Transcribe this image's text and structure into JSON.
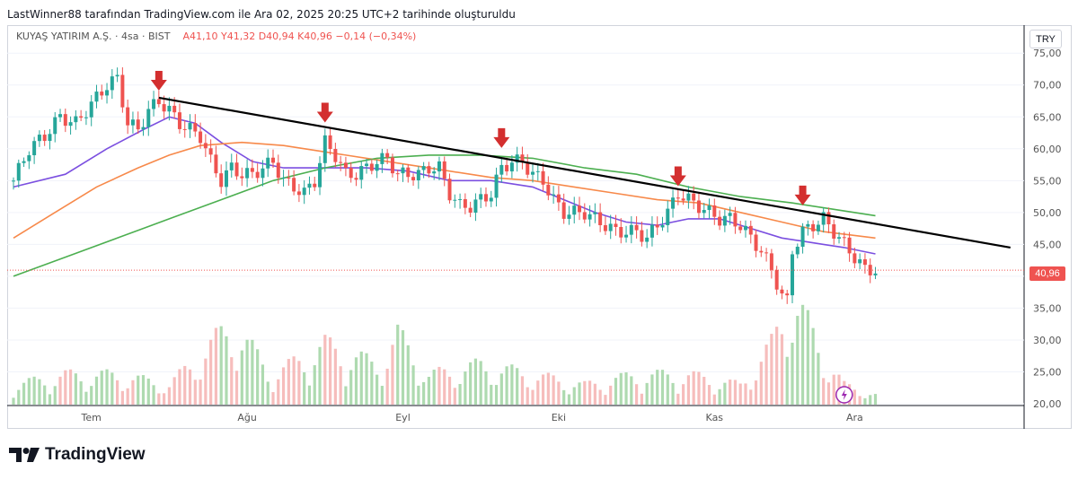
{
  "header": {
    "text": "LastWinner88 tarafından TradingView.com ile Ara 02, 2025 20:25 UTC+2 tarihinde oluşturuldu"
  },
  "legend": {
    "symbol": "KUYAŞ YATIRIM A.Ş. · 4sa · BIST",
    "a": "A41,10",
    "y": "Y41,32",
    "d": "D40,94",
    "k": "K40,96",
    "change": "−0,14 (−0,34%)"
  },
  "currency": "TRY",
  "last_price": "40,96",
  "brand": {
    "name": "TradingView"
  },
  "colors": {
    "up": "#26a69a",
    "down": "#ef5350",
    "ma_short": "#7b4fe0",
    "ma_mid": "#f7894a",
    "ma_long": "#4caf50",
    "trend": "#000000",
    "arrow": "#d32f2f"
  },
  "chart_data": {
    "type": "candlestick",
    "title": "KUYAŞ YATIRIM A.Ş. · 4sa · BIST",
    "ylim": [
      20,
      77
    ],
    "y_ticks": [
      "75,00",
      "70,00",
      "65,00",
      "60,00",
      "55,00",
      "50,00",
      "45,00",
      "40,00",
      "35,00",
      "30,00",
      "25,00",
      "20,00"
    ],
    "y_tick_values": [
      75,
      70,
      65,
      60,
      55,
      50,
      45,
      40,
      35,
      30,
      25,
      20
    ],
    "x_labels": [
      "Tem",
      "Ağu",
      "Eyl",
      "Eki",
      "Kas",
      "Ara"
    ],
    "x_label_index": [
      15,
      45,
      75,
      105,
      135,
      162
    ],
    "n_bars": 167,
    "close_path": [
      [
        0,
        55
      ],
      [
        3,
        60
      ],
      [
        6,
        62
      ],
      [
        9,
        65
      ],
      [
        12,
        64
      ],
      [
        15,
        67
      ],
      [
        18,
        70
      ],
      [
        20,
        71
      ],
      [
        22,
        64
      ],
      [
        24,
        63
      ],
      [
        26,
        66
      ],
      [
        28,
        67.5
      ],
      [
        30,
        66
      ],
      [
        32,
        64
      ],
      [
        34,
        63
      ],
      [
        36,
        62
      ],
      [
        38,
        58
      ],
      [
        40,
        55
      ],
      [
        42,
        57
      ],
      [
        44,
        56
      ],
      [
        46,
        56
      ],
      [
        48,
        57
      ],
      [
        50,
        58
      ],
      [
        52,
        55
      ],
      [
        54,
        54
      ],
      [
        56,
        53
      ],
      [
        58,
        55
      ],
      [
        60,
        61
      ],
      [
        62,
        59
      ],
      [
        64,
        56
      ],
      [
        66,
        56
      ],
      [
        68,
        57
      ],
      [
        70,
        58
      ],
      [
        72,
        58.5
      ],
      [
        74,
        56
      ],
      [
        76,
        56
      ],
      [
        78,
        56
      ],
      [
        80,
        57
      ],
      [
        82,
        57
      ],
      [
        84,
        53
      ],
      [
        86,
        51
      ],
      [
        88,
        51
      ],
      [
        90,
        52
      ],
      [
        92,
        53
      ],
      [
        94,
        57
      ],
      [
        96,
        58
      ],
      [
        98,
        58
      ],
      [
        100,
        56
      ],
      [
        102,
        55
      ],
      [
        104,
        52
      ],
      [
        106,
        50
      ],
      [
        108,
        50
      ],
      [
        110,
        50
      ],
      [
        112,
        49
      ],
      [
        114,
        48
      ],
      [
        116,
        47
      ],
      [
        118,
        47
      ],
      [
        120,
        47
      ],
      [
        122,
        46
      ],
      [
        124,
        48
      ],
      [
        126,
        50
      ],
      [
        128,
        53
      ],
      [
        130,
        52
      ],
      [
        132,
        51
      ],
      [
        134,
        50
      ],
      [
        136,
        49
      ],
      [
        138,
        49
      ],
      [
        140,
        48
      ],
      [
        142,
        46
      ],
      [
        144,
        44
      ],
      [
        146,
        41
      ],
      [
        148,
        37
      ],
      [
        149,
        36
      ],
      [
        150,
        44
      ],
      [
        152,
        47
      ],
      [
        154,
        48
      ],
      [
        156,
        49
      ],
      [
        158,
        47
      ],
      [
        160,
        45
      ],
      [
        162,
        43
      ],
      [
        164,
        41
      ],
      [
        166,
        41
      ]
    ],
    "volume_path": [
      [
        0,
        2
      ],
      [
        10,
        3
      ],
      [
        20,
        3
      ],
      [
        30,
        2
      ],
      [
        42,
        8
      ],
      [
        50,
        3
      ],
      [
        60,
        6
      ],
      [
        70,
        4
      ],
      [
        74,
        7
      ],
      [
        80,
        3
      ],
      [
        90,
        4
      ],
      [
        100,
        3
      ],
      [
        110,
        2
      ],
      [
        120,
        3
      ],
      [
        130,
        3
      ],
      [
        140,
        2
      ],
      [
        146,
        6
      ],
      [
        150,
        11
      ],
      [
        153,
        8
      ],
      [
        156,
        5
      ],
      [
        160,
        2
      ],
      [
        166,
        1
      ]
    ],
    "series": [
      {
        "name": "MA short",
        "values": [
          [
            0,
            54
          ],
          [
            10,
            56
          ],
          [
            18,
            60
          ],
          [
            25,
            63
          ],
          [
            30,
            65
          ],
          [
            35,
            64
          ],
          [
            40,
            61
          ],
          [
            46,
            58
          ],
          [
            52,
            57
          ],
          [
            60,
            57
          ],
          [
            68,
            57
          ],
          [
            76,
            56.5
          ],
          [
            84,
            55
          ],
          [
            92,
            55
          ],
          [
            100,
            54
          ],
          [
            106,
            52
          ],
          [
            112,
            50
          ],
          [
            118,
            48.5
          ],
          [
            124,
            48
          ],
          [
            130,
            49
          ],
          [
            136,
            49
          ],
          [
            142,
            47.5
          ],
          [
            148,
            46
          ],
          [
            152,
            45.5
          ],
          [
            156,
            45
          ],
          [
            160,
            44.5
          ],
          [
            166,
            43.5
          ]
        ]
      },
      {
        "name": "MA mid",
        "values": [
          [
            0,
            46
          ],
          [
            8,
            50
          ],
          [
            16,
            54
          ],
          [
            24,
            57
          ],
          [
            30,
            59
          ],
          [
            36,
            60.5
          ],
          [
            44,
            61
          ],
          [
            52,
            60.5
          ],
          [
            60,
            59.5
          ],
          [
            68,
            58.5
          ],
          [
            76,
            57.5
          ],
          [
            84,
            56.5
          ],
          [
            92,
            55.5
          ],
          [
            100,
            55
          ],
          [
            108,
            54
          ],
          [
            116,
            53
          ],
          [
            124,
            52
          ],
          [
            132,
            51.5
          ],
          [
            140,
            50
          ],
          [
            148,
            48.5
          ],
          [
            156,
            47
          ],
          [
            166,
            46
          ]
        ]
      },
      {
        "name": "MA long",
        "values": [
          [
            0,
            40
          ],
          [
            10,
            43
          ],
          [
            20,
            46
          ],
          [
            30,
            49
          ],
          [
            40,
            52
          ],
          [
            50,
            55
          ],
          [
            60,
            57
          ],
          [
            70,
            58.5
          ],
          [
            80,
            59
          ],
          [
            90,
            59
          ],
          [
            100,
            58.5
          ],
          [
            110,
            57
          ],
          [
            120,
            56
          ],
          [
            130,
            54
          ],
          [
            140,
            52.5
          ],
          [
            150,
            51.5
          ],
          [
            158,
            50.5
          ],
          [
            166,
            49.5
          ]
        ]
      }
    ],
    "trend_line": {
      "from": [
        28,
        68
      ],
      "to": [
        192,
        44.5
      ]
    },
    "arrows_at": [
      [
        28,
        68
      ],
      [
        60,
        63
      ],
      [
        94,
        59
      ],
      [
        128,
        53
      ],
      [
        152,
        50
      ]
    ],
    "last_value": 40.96
  }
}
